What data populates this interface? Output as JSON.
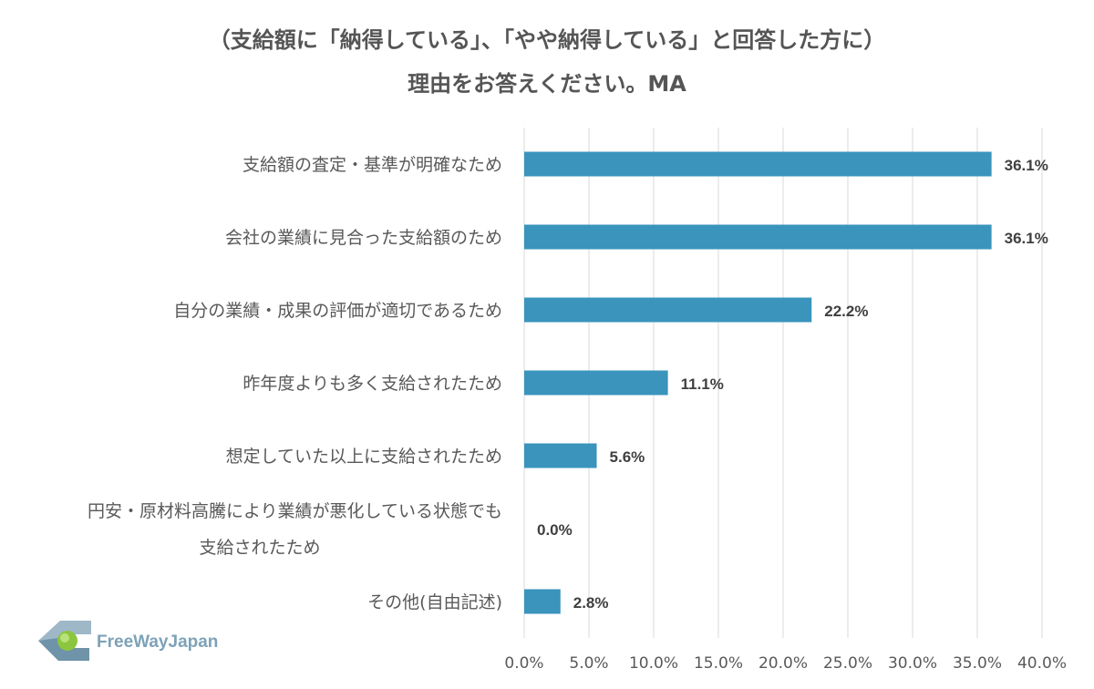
{
  "chart_data": {
    "type": "bar",
    "orientation": "horizontal",
    "title": [
      "（支給額に「納得している」、「やや納得している」と回答した方に）",
      "理由をお答えください。MA"
    ],
    "categories": [
      [
        "支給額の査定・基準が明確なため"
      ],
      [
        "会社の業績に見合った支給額のため"
      ],
      [
        "自分の業績・成果の評価が適切であるため"
      ],
      [
        "昨年度よりも多く支給されたため"
      ],
      [
        "想定していた以上に支給されたため"
      ],
      [
        "円安・原材料高騰により業績が悪化している状態でも",
        "支給されたため"
      ],
      [
        "その他(自由記述)"
      ]
    ],
    "values": [
      36.1,
      36.1,
      22.2,
      11.1,
      5.6,
      0.0,
      2.8
    ],
    "data_labels": [
      "36.1%",
      "36.1%",
      "22.2%",
      "11.1%",
      "5.6%",
      "0.0%",
      "2.8%"
    ],
    "xlim": [
      0,
      40
    ],
    "xticks": [
      "0.0%",
      "5.0%",
      "10.0%",
      "15.0%",
      "20.0%",
      "25.0%",
      "30.0%",
      "35.0%",
      "40.0%"
    ],
    "grid": true,
    "bar_color": "#3a94bc"
  },
  "logo": {
    "text": "FreeWayJapan"
  }
}
